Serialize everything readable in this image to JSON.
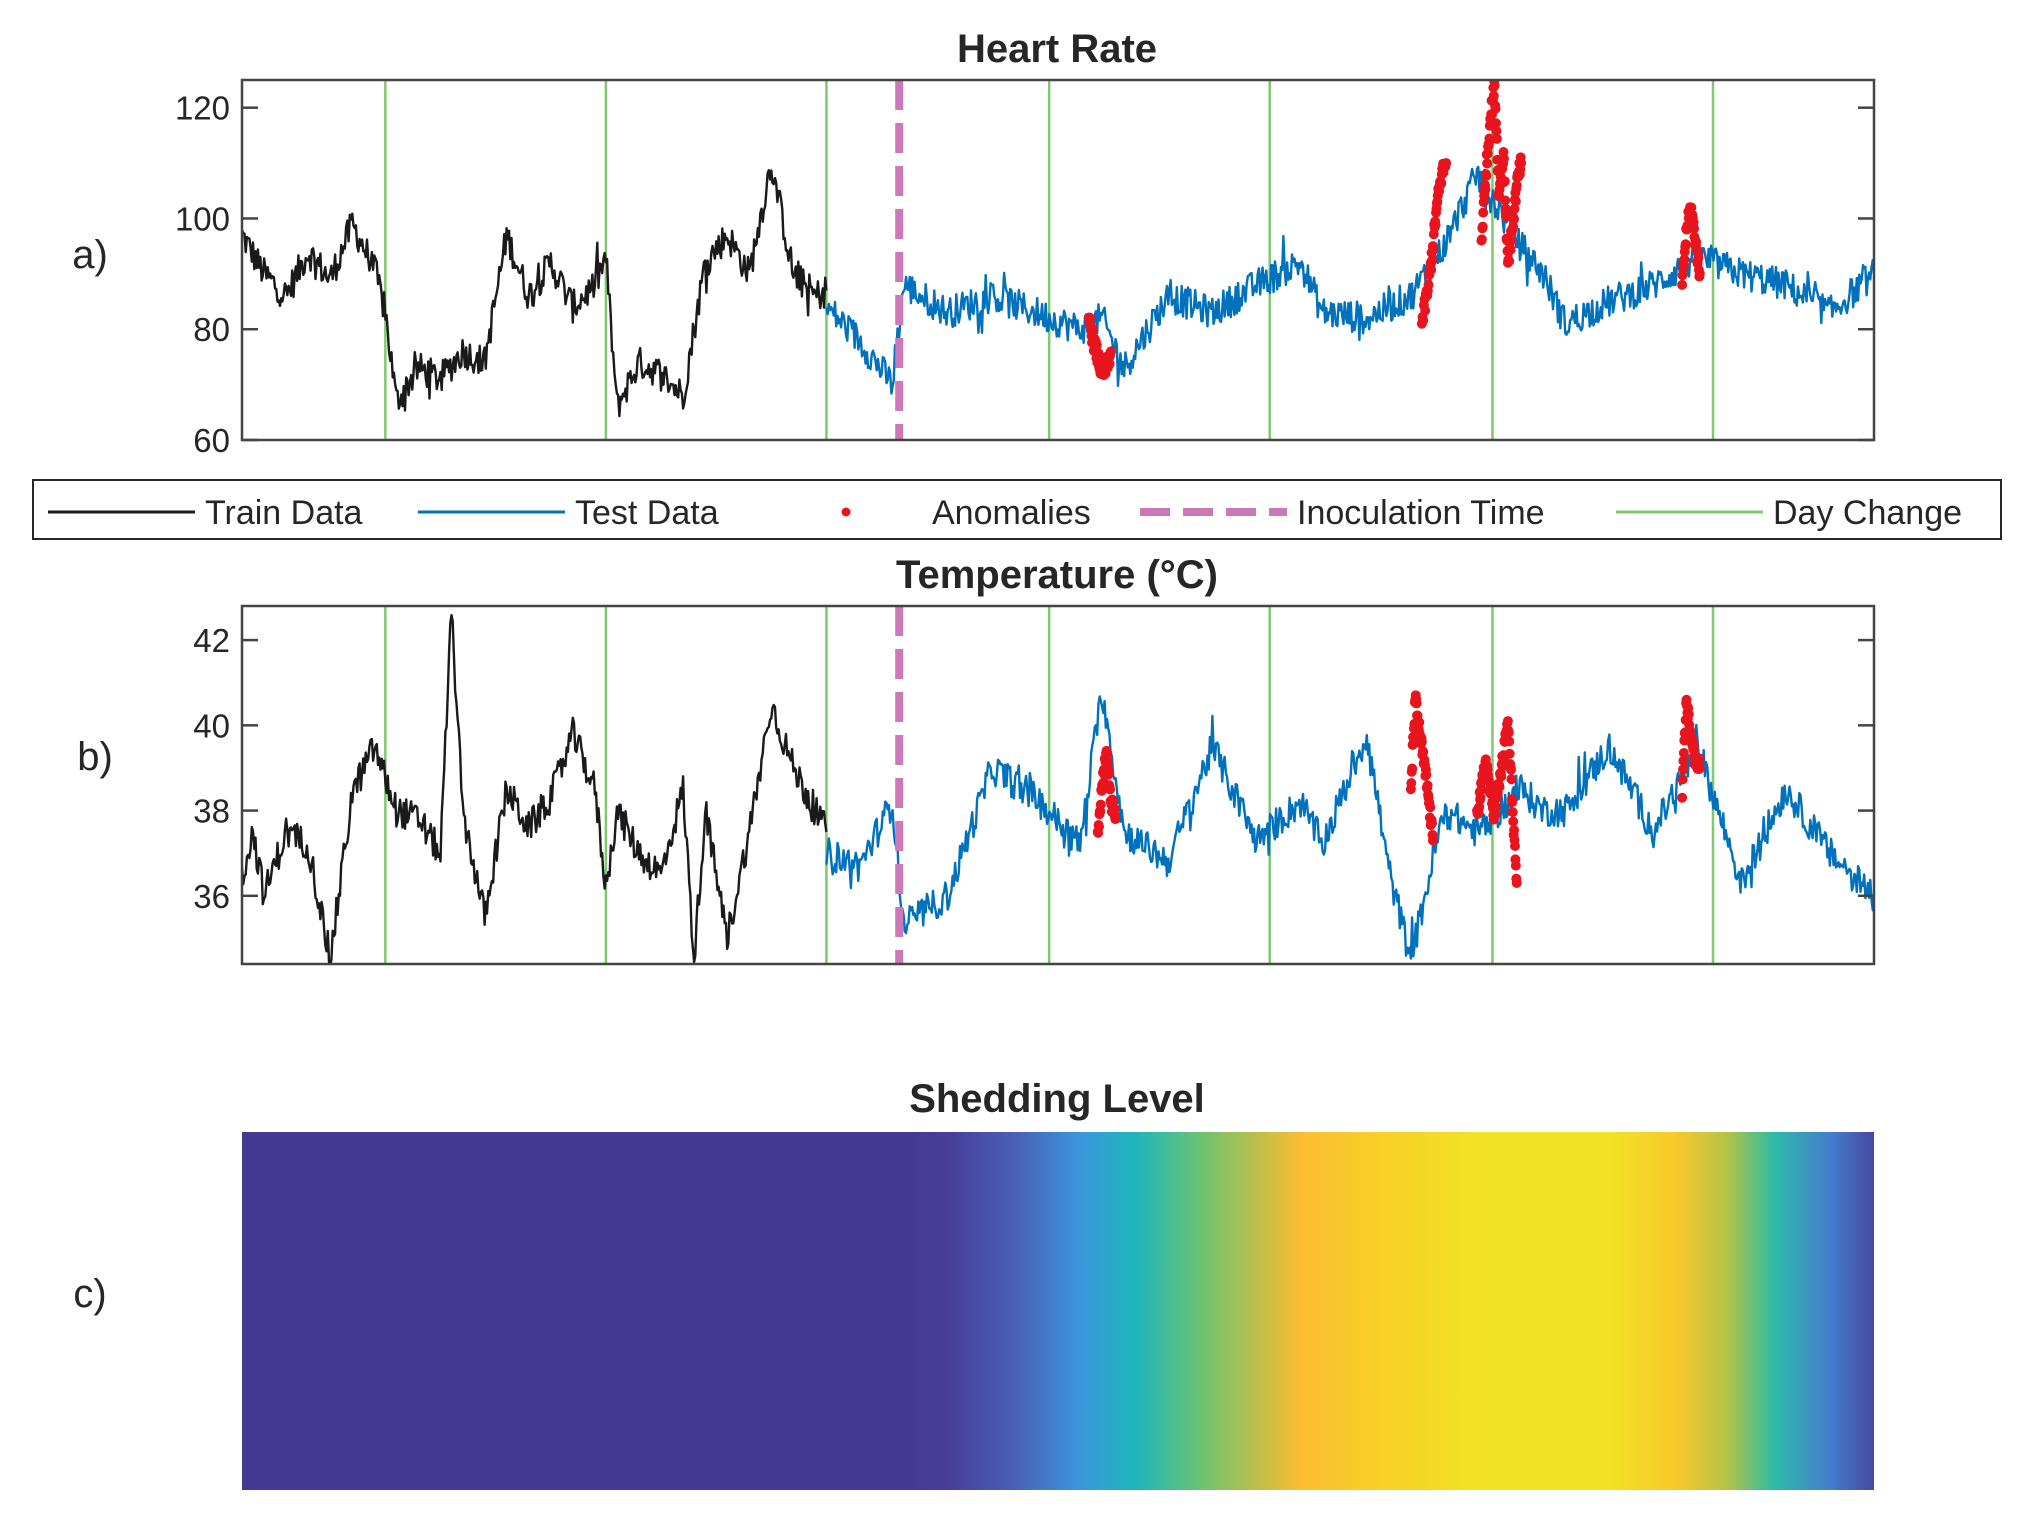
{
  "chart_data": [
    {
      "type": "line",
      "panel_label": "a)",
      "title": "Heart Rate",
      "ylim": [
        60,
        125
      ],
      "yticks": [
        "60",
        "80",
        "100",
        "120"
      ],
      "ytick_values": [
        60,
        80,
        100,
        120
      ],
      "xlim": [
        0,
        7.4
      ],
      "grid": false,
      "series": [
        {
          "name": "Train Data",
          "color": "#1a1a1a",
          "x_range": [
            0,
            2.65
          ],
          "x": [
            0,
            0.1,
            0.2,
            0.3,
            0.4,
            0.5,
            0.6,
            0.65,
            0.7,
            0.8,
            0.9,
            1.0,
            1.1,
            1.2,
            1.3,
            1.4,
            1.5,
            1.6,
            1.65,
            1.7,
            1.8,
            1.9,
            2.0,
            2.1,
            2.2,
            2.3,
            2.4,
            2.5,
            2.6,
            2.65
          ],
          "y": [
            97,
            90,
            86,
            94,
            89,
            99,
            91,
            83,
            67,
            73,
            71,
            76,
            74,
            97,
            86,
            92,
            84,
            88,
            93,
            66,
            74,
            72,
            68,
            92,
            97,
            90,
            110,
            90,
            86,
            87
          ]
        },
        {
          "name": "Test Data",
          "color": "#0072bd",
          "x_range": [
            2.65,
            7.4
          ],
          "x": [
            2.65,
            2.8,
            2.95,
            3.0,
            3.2,
            3.4,
            3.6,
            3.8,
            3.9,
            4.0,
            4.2,
            4.4,
            4.6,
            4.8,
            4.9,
            5.1,
            5.3,
            5.45,
            5.6,
            5.8,
            5.9,
            6.0,
            6.2,
            6.4,
            6.6,
            6.8,
            7.0,
            7.2,
            7.4
          ],
          "y": [
            84,
            78,
            70,
            88,
            83,
            86,
            83,
            80,
            82,
            73,
            86,
            83,
            88,
            92,
            83,
            82,
            86,
            95,
            108,
            95,
            90,
            81,
            85,
            88,
            93,
            90,
            88,
            83,
            90
          ]
        },
        {
          "name": "Anomalies",
          "color": "#e8141e",
          "marker": "dot",
          "x": [
            3.84,
            3.86,
            3.88,
            3.9,
            3.92,
            3.94,
            5.35,
            5.38,
            5.4,
            5.42,
            5.44,
            5.46,
            5.62,
            5.64,
            5.66,
            5.68,
            5.7,
            5.72,
            5.74,
            5.76,
            5.78,
            5.8,
            6.53,
            6.55,
            6.57,
            6.59,
            6.61
          ],
          "y": [
            82,
            78,
            75,
            72,
            73,
            76,
            81,
            88,
            95,
            103,
            108,
            110,
            96,
            108,
            118,
            124,
            104,
            112,
            92,
            98,
            106,
            110,
            88,
            98,
            102,
            96,
            90
          ]
        },
        {
          "name": "Inoculation Time",
          "color": "#cc79b7",
          "style": "dashed",
          "x": [
            2.98
          ]
        },
        {
          "name": "Day Change",
          "color": "#80c870",
          "x": [
            0.65,
            1.65,
            2.65,
            3.66,
            4.66,
            5.67,
            6.67
          ]
        }
      ]
    },
    {
      "type": "line",
      "panel_label": "b)",
      "title": "Temperature (°C)",
      "ylim": [
        34.4,
        42.8
      ],
      "yticks": [
        "36",
        "38",
        "40",
        "42"
      ],
      "ytick_values": [
        36,
        38,
        40,
        42
      ],
      "xlim": [
        0,
        7.4
      ],
      "grid": false,
      "series": [
        {
          "name": "Train Data",
          "color": "#1a1a1a",
          "x": [
            0,
            0.05,
            0.1,
            0.2,
            0.3,
            0.4,
            0.5,
            0.6,
            0.7,
            0.8,
            0.9,
            0.95,
            1.0,
            1.1,
            1.2,
            1.3,
            1.4,
            1.5,
            1.6,
            1.65,
            1.7,
            1.8,
            1.9,
            2.0,
            2.05,
            2.1,
            2.2,
            2.3,
            2.4,
            2.5,
            2.6,
            2.65
          ],
          "y": [
            36.5,
            37.5,
            36,
            37.5,
            37.2,
            34.5,
            38.4,
            39.5,
            38,
            37.8,
            37,
            42.7,
            38,
            35.5,
            38.5,
            37.6,
            38.3,
            39.8,
            38.5,
            36.2,
            38,
            37,
            36.5,
            38.5,
            34.5,
            38,
            35,
            37.5,
            40.5,
            39,
            38,
            37.5
          ]
        },
        {
          "name": "Test Data",
          "color": "#0072bd",
          "x": [
            2.65,
            2.8,
            2.95,
            3.0,
            3.2,
            3.4,
            3.6,
            3.8,
            3.9,
            4.0,
            4.2,
            4.4,
            4.6,
            4.8,
            4.9,
            5.1,
            5.2,
            5.3,
            5.45,
            5.6,
            5.8,
            5.9,
            6.0,
            6.2,
            6.4,
            6.6,
            6.8,
            7.0,
            7.2,
            7.4
          ],
          "y": [
            37,
            36.7,
            38.2,
            35.3,
            36,
            39,
            38.3,
            37.2,
            40.8,
            37.5,
            36.8,
            39.5,
            37.3,
            38.2,
            37.2,
            39.8,
            36.6,
            34.5,
            38,
            37.5,
            38.5,
            38,
            38,
            39.5,
            37.5,
            39.5,
            36.3,
            38.5,
            37,
            36
          ]
        },
        {
          "name": "Anomalies",
          "color": "#e8141e",
          "marker": "dot",
          "x": [
            3.88,
            3.9,
            3.92,
            3.94,
            3.96,
            5.3,
            5.32,
            5.34,
            5.36,
            5.38,
            5.4,
            5.6,
            5.62,
            5.64,
            5.66,
            5.68,
            5.7,
            5.72,
            5.74,
            5.76,
            5.78,
            6.53,
            6.55,
            6.57,
            6.59,
            6.61
          ],
          "y": [
            37.5,
            38.6,
            39.4,
            38.2,
            37.8,
            38.5,
            40.6,
            39.8,
            39.1,
            38.3,
            37.3,
            38,
            38.5,
            39.2,
            38.4,
            37.9,
            38.6,
            39.3,
            40.1,
            38.2,
            36.3,
            38.3,
            40.6,
            39.7,
            39.2,
            39
          ]
        },
        {
          "name": "Inoculation Time",
          "color": "#cc79b7",
          "style": "dashed",
          "x": [
            2.98
          ]
        },
        {
          "name": "Day Change",
          "color": "#80c870",
          "x": [
            0.65,
            1.65,
            2.65,
            3.66,
            4.66,
            5.67,
            6.67
          ]
        }
      ]
    },
    {
      "type": "heatmap",
      "panel_label": "c)",
      "title": "Shedding Level",
      "colormap": "parula",
      "xlim": [
        0,
        7.4
      ],
      "x": [
        0,
        3.0,
        3.2,
        3.5,
        3.8,
        4.05,
        4.35,
        4.8,
        5.1,
        5.6,
        6.2,
        6.5,
        6.73,
        6.95,
        7.2,
        7.4
      ],
      "values": [
        0,
        0,
        0.02,
        0.12,
        0.3,
        0.45,
        0.62,
        0.82,
        0.9,
        0.97,
        0.97,
        0.88,
        0.72,
        0.5,
        0.22,
        0.05
      ]
    }
  ],
  "legend": {
    "position": "between panels a and b",
    "entries": [
      {
        "label": "Train Data",
        "color": "#1a1a1a",
        "style": "solid"
      },
      {
        "label": "Test Data",
        "color": "#0072bd",
        "style": "solid"
      },
      {
        "label": "Anomalies",
        "color": "#e8141e",
        "style": "dot"
      },
      {
        "label": "Inoculation Time",
        "color": "#cc79b7",
        "style": "dashed"
      },
      {
        "label": "Day Change",
        "color": "#80c870",
        "style": "solid"
      }
    ]
  },
  "colors": {
    "axes": "#444444",
    "text": "#262626"
  }
}
